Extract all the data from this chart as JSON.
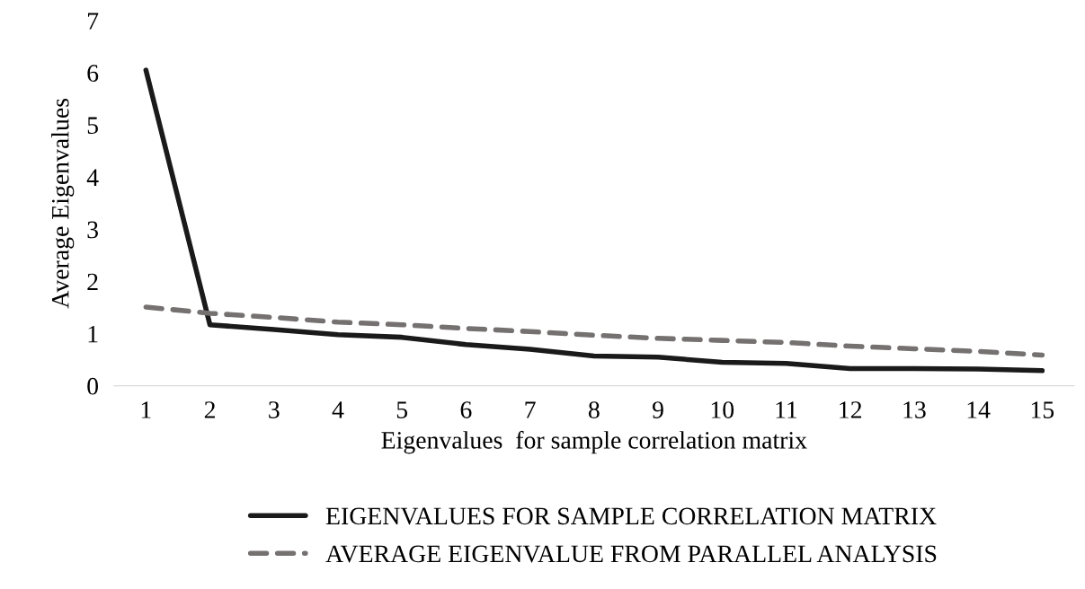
{
  "chart_data": {
    "type": "line",
    "xlabel": "Eigenvalues  for sample correlation matrix",
    "ylabel": "Average Eigenvalues",
    "categories": [
      "1",
      "2",
      "3",
      "4",
      "5",
      "6",
      "7",
      "8",
      "9",
      "10",
      "11",
      "12",
      "13",
      "14",
      "15"
    ],
    "series": [
      {
        "name": "EIGENVALUES FOR SAMPLE CORRELATION MATRIX",
        "color": "#1a1a1a",
        "line_style": "solid",
        "values": [
          6.05,
          1.17,
          1.08,
          0.98,
          0.93,
          0.79,
          0.7,
          0.57,
          0.55,
          0.45,
          0.43,
          0.33,
          0.33,
          0.32,
          0.29
        ]
      },
      {
        "name": "AVERAGE EIGENVALUE FROM PARALLEL ANALYSIS",
        "color": "#767171",
        "line_style": "dashed",
        "values": [
          1.51,
          1.39,
          1.31,
          1.22,
          1.17,
          1.1,
          1.04,
          0.97,
          0.91,
          0.87,
          0.83,
          0.76,
          0.71,
          0.66,
          0.59
        ]
      }
    ],
    "ylim": [
      0,
      7
    ],
    "yticks": [
      0,
      1,
      2,
      3,
      4,
      5,
      6,
      7
    ],
    "grid": false,
    "legend": "bottom",
    "marker": "none"
  }
}
